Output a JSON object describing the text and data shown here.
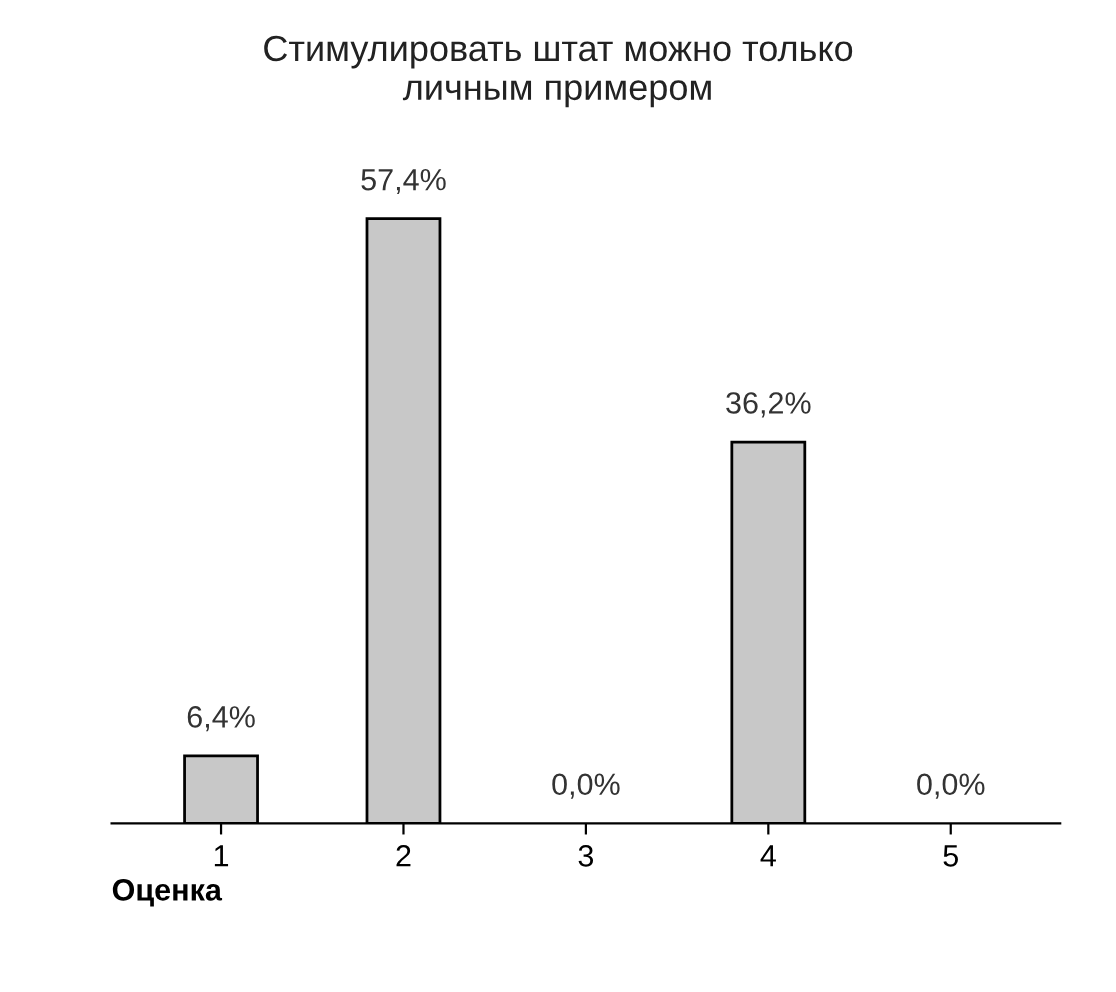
{
  "chart_data": {
    "type": "bar",
    "title": "Стимулировать штат можно только\nличным примером",
    "xlabel": "Оценка",
    "categories": [
      "1",
      "2",
      "3",
      "4",
      "5"
    ],
    "values": [
      6.4,
      57.4,
      0.0,
      36.2,
      0.0
    ],
    "value_labels": [
      "6,4%",
      "57,4%",
      "0,0%",
      "36,2%",
      "0,0%"
    ],
    "color": "#c8c8c8",
    "tick_labels": "x",
    "grid": false,
    "legend": false
  }
}
